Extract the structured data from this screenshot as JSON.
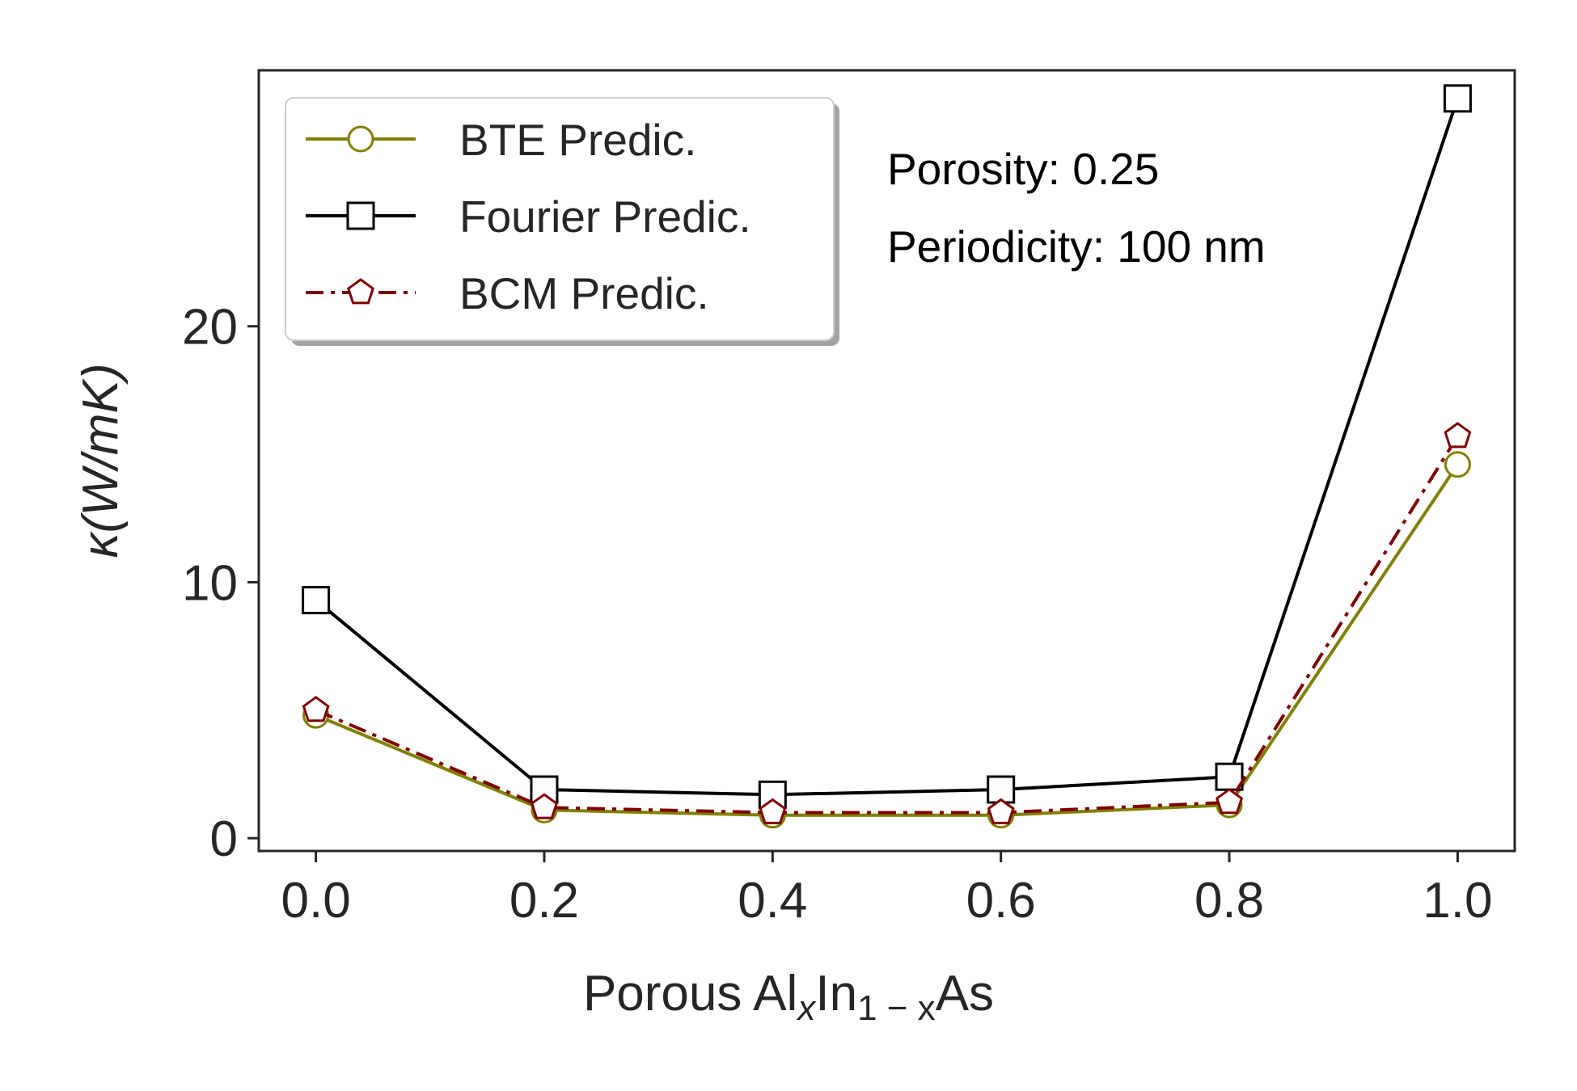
{
  "chart_data": {
    "type": "line",
    "x": [
      0.0,
      0.2,
      0.4,
      0.6,
      0.8,
      1.0
    ],
    "series": [
      {
        "name": "BTE Predic.",
        "values": [
          4.8,
          1.1,
          0.9,
          0.9,
          1.3,
          14.6
        ],
        "color": "#808000",
        "marker": "circle",
        "linestyle": "solid"
      },
      {
        "name": "Fourier Predic.",
        "values": [
          9.3,
          1.9,
          1.7,
          1.9,
          2.4,
          28.9
        ],
        "color": "#000000",
        "marker": "square",
        "linestyle": "solid"
      },
      {
        "name": "BCM Predic.",
        "values": [
          5.0,
          1.2,
          1.0,
          1.0,
          1.4,
          15.7
        ],
        "color": "#800000",
        "marker": "pentagon",
        "linestyle": "dashdot"
      }
    ],
    "xlabel": {
      "pre": "Porous Al",
      "sub1": "x",
      "mid": "In",
      "sub2": "1 − x",
      "post": "As"
    },
    "ylabel": "κ(W/mK)",
    "xticks": [
      "0.0",
      "0.2",
      "0.4",
      "0.6",
      "0.8",
      "1.0"
    ],
    "yticks": [
      "0",
      "10",
      "20"
    ],
    "xlim": [
      -0.05,
      1.05
    ],
    "ylim": [
      -0.5,
      30.0
    ],
    "grid": false,
    "legend_position": "top-left",
    "annotations": [
      "Porosity: 0.25",
      "Periodicity: 100 nm"
    ]
  }
}
